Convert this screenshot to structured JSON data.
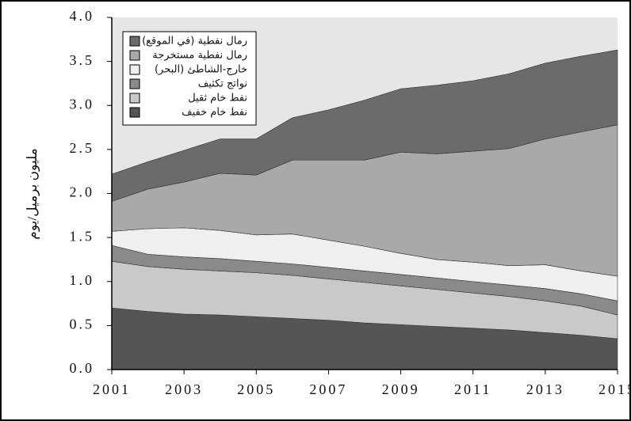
{
  "chart_data": {
    "type": "stacked_area",
    "y_label": "مليون برميل/يوم",
    "x": [
      2001,
      2002,
      2003,
      2004,
      2005,
      2006,
      2007,
      2008,
      2009,
      2010,
      2011,
      2012,
      2013,
      2014,
      2015
    ],
    "xlim": [
      2001,
      2015
    ],
    "xticks": [
      2001,
      2003,
      2005,
      2007,
      2009,
      2011,
      2013,
      2015
    ],
    "ylim": [
      0,
      4
    ],
    "yticks": [
      {
        "value": 0,
        "label": "0.0"
      },
      0.5,
      {
        "value": 1,
        "label": "1.0"
      },
      1.5,
      {
        "value": 2,
        "label": "2.0"
      },
      2.5,
      {
        "value": 3,
        "label": "3.0"
      },
      3.5,
      {
        "value": 4,
        "label": "4.0"
      }
    ],
    "series": [
      {
        "name": "نفط خام خفيف",
        "color": "#555555",
        "values": [
          0.7,
          0.66,
          0.63,
          0.62,
          0.6,
          0.58,
          0.56,
          0.53,
          0.51,
          0.49,
          0.47,
          0.45,
          0.42,
          0.39,
          0.35
        ]
      },
      {
        "name": "نفط خام ثقيل",
        "color": "#c9c9c9",
        "values": [
          0.53,
          0.51,
          0.51,
          0.5,
          0.5,
          0.49,
          0.47,
          0.46,
          0.44,
          0.42,
          0.4,
          0.38,
          0.36,
          0.33,
          0.27
        ]
      },
      {
        "name": "نواتج تكثيف",
        "color": "#8a8a8a",
        "values": [
          0.18,
          0.14,
          0.14,
          0.14,
          0.13,
          0.13,
          0.13,
          0.13,
          0.13,
          0.13,
          0.13,
          0.13,
          0.14,
          0.14,
          0.16
        ]
      },
      {
        "name": "خارج-الشاطئ (البحر)",
        "color": "#efefef",
        "values": [
          0.16,
          0.29,
          0.33,
          0.32,
          0.3,
          0.34,
          0.31,
          0.28,
          0.24,
          0.21,
          0.22,
          0.22,
          0.27,
          0.26,
          0.28
        ]
      },
      {
        "name": "رمال نفطية مستخرجة",
        "color": "#a9a9a9",
        "values": [
          0.34,
          0.45,
          0.52,
          0.65,
          0.68,
          0.84,
          0.91,
          0.98,
          1.15,
          1.2,
          1.26,
          1.33,
          1.43,
          1.58,
          1.72
        ]
      },
      {
        "name": "رمال نفطية (في الموقع)",
        "color": "#6b6b6b",
        "values": [
          0.31,
          0.31,
          0.36,
          0.39,
          0.41,
          0.48,
          0.57,
          0.68,
          0.72,
          0.78,
          0.8,
          0.85,
          0.86,
          0.86,
          0.85
        ]
      }
    ]
  }
}
